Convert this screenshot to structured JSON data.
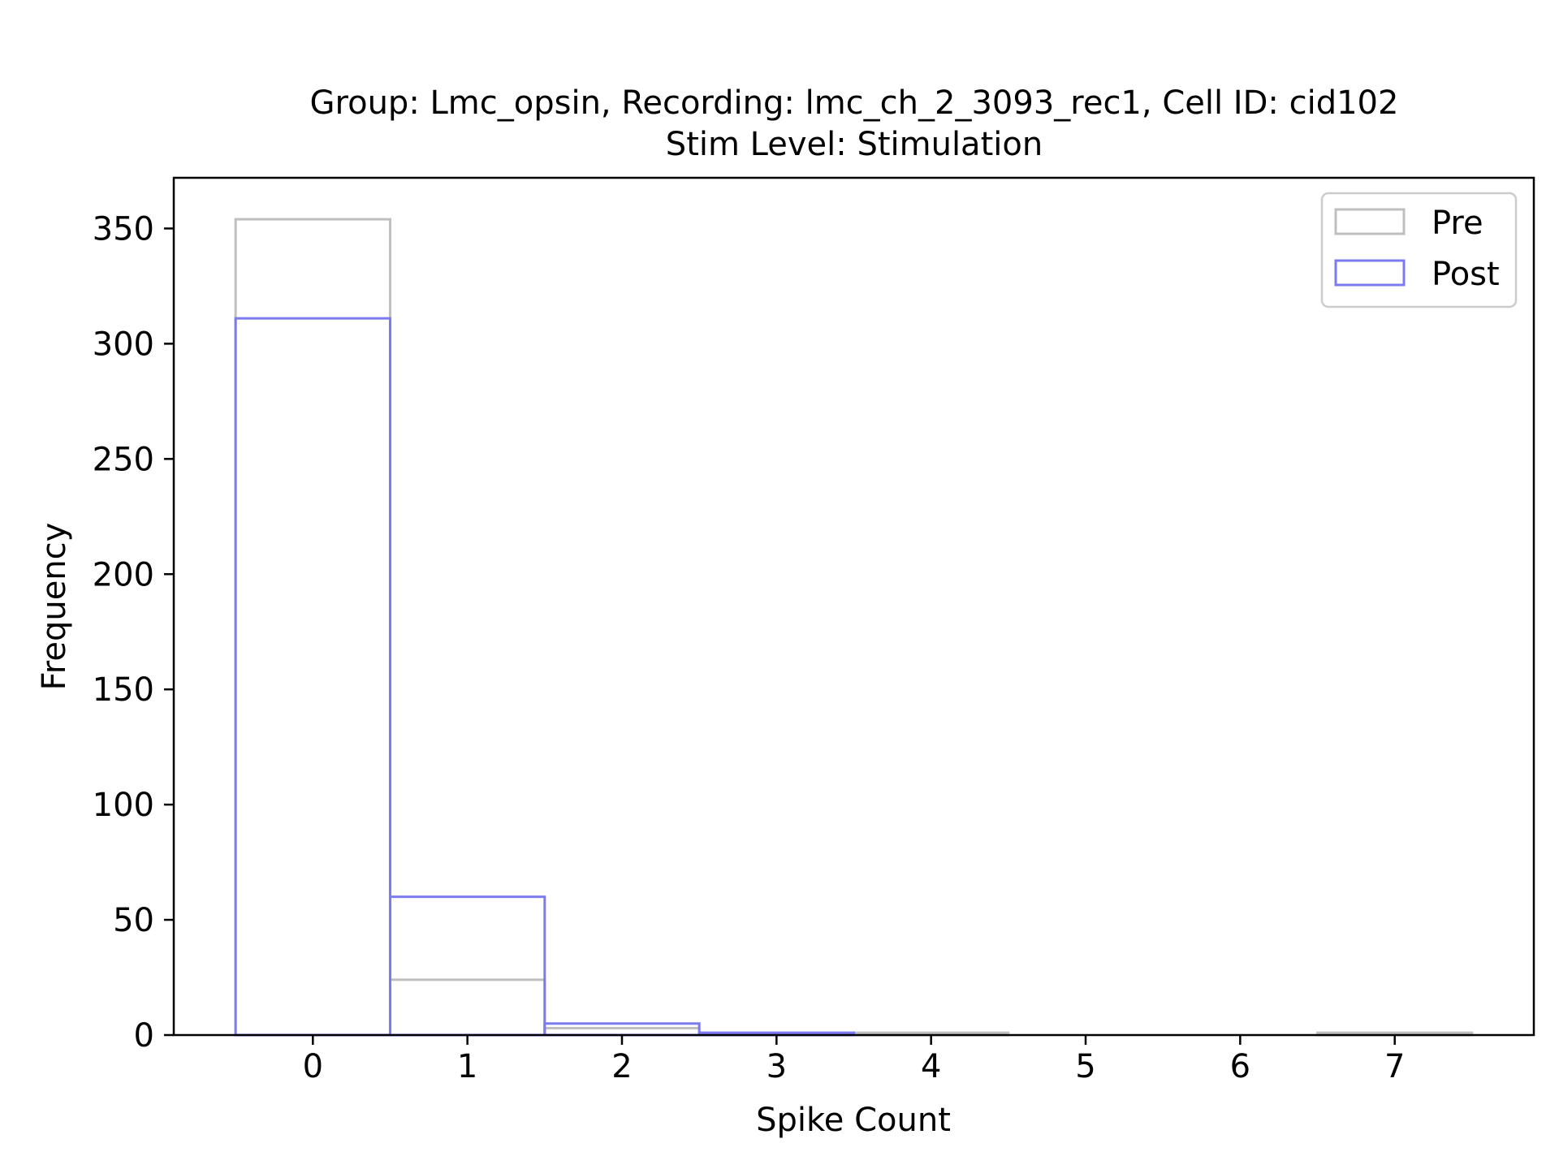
{
  "chart_data": {
    "type": "bar",
    "title_line1": "Group: Lmc_opsin, Recording: lmc_ch_2_3093_rec1, Cell ID: cid102",
    "title_line2": "Stim Level: Stimulation",
    "xlabel": "Spike Count",
    "ylabel": "Frequency",
    "xlim": [
      -0.9,
      7.9
    ],
    "ylim": [
      0,
      372
    ],
    "x_ticks": [
      0,
      1,
      2,
      3,
      4,
      5,
      6,
      7
    ],
    "y_ticks": [
      0,
      50,
      100,
      150,
      200,
      250,
      300,
      350
    ],
    "x": [
      0,
      1,
      2,
      3,
      4,
      5,
      6,
      7
    ],
    "legend_position": "upper-right",
    "series": [
      {
        "name": "Pre",
        "color": "#bfbfbf",
        "values": [
          354,
          24,
          3,
          1,
          1,
          0,
          0,
          1
        ]
      },
      {
        "name": "Post",
        "color": "#7b7bf0",
        "values": [
          311,
          60,
          5,
          1,
          0,
          0,
          0,
          0
        ]
      }
    ]
  }
}
